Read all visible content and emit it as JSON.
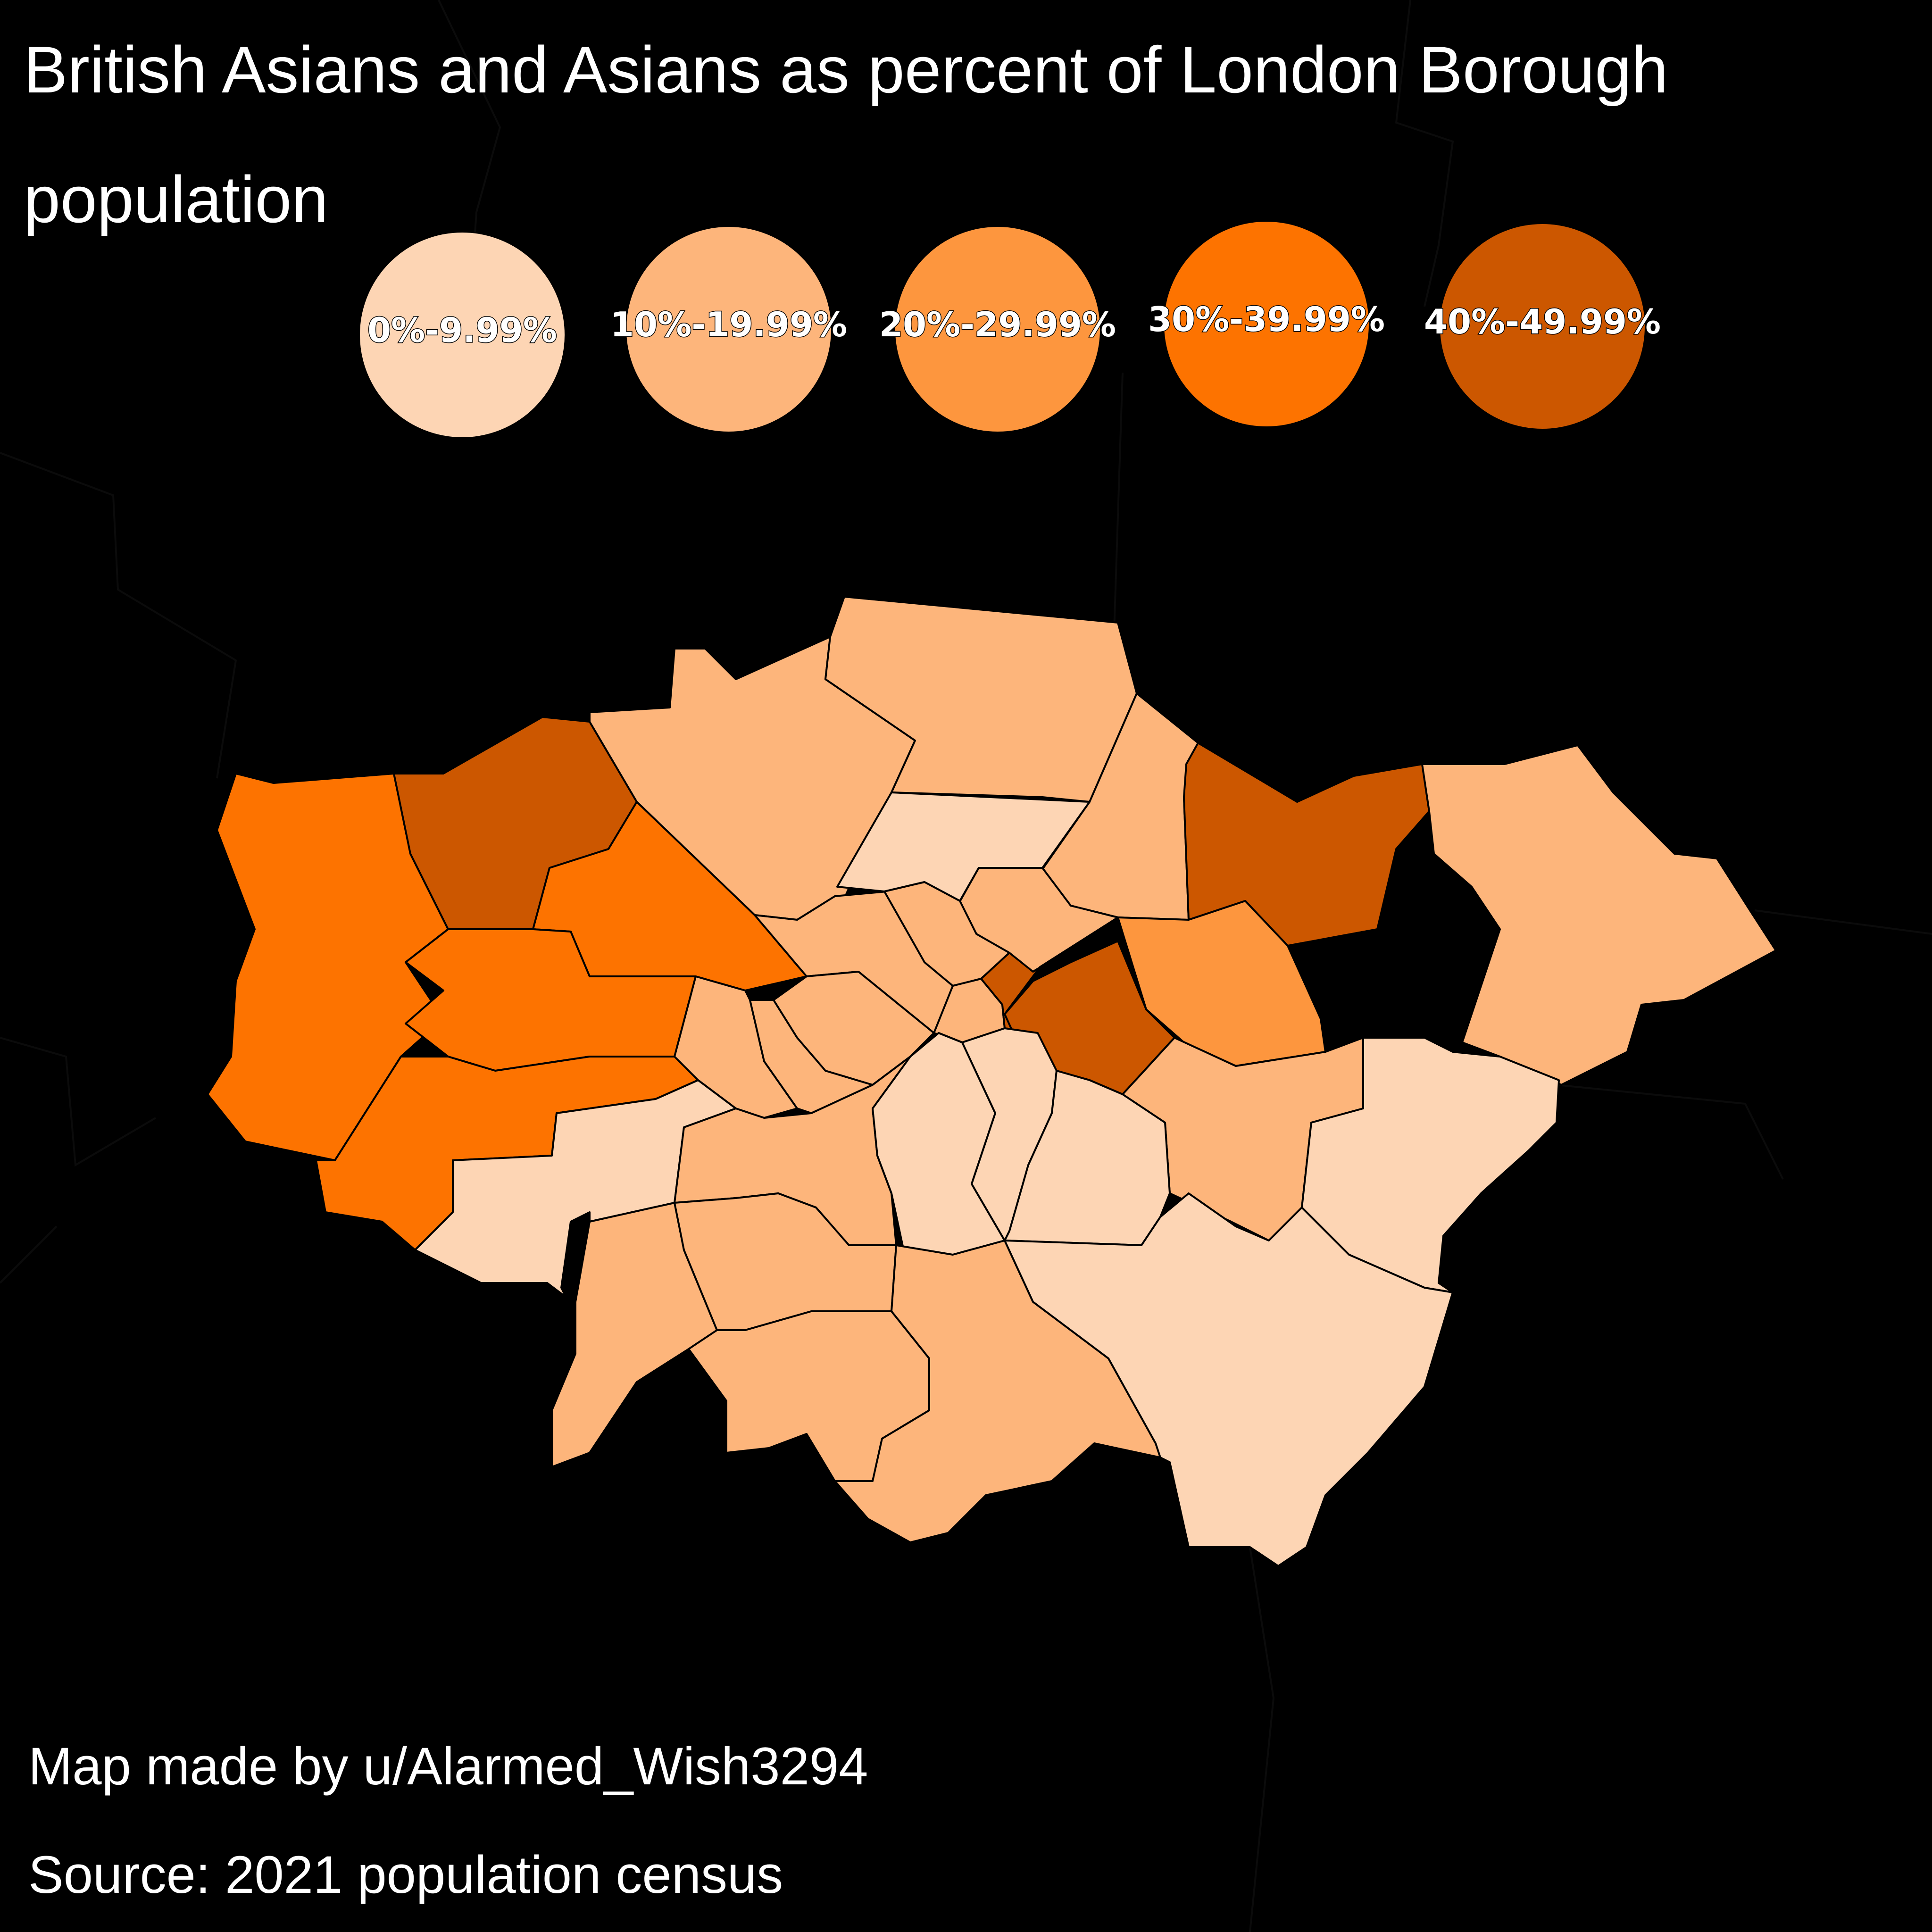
{
  "title": "British Asians and Asians as percent of London Borough population",
  "credits": {
    "author": "Map made by u/Alarmed_Wish3294",
    "source": "Source: 2021 population census"
  },
  "colors": {
    "background": "#000000",
    "border": "#000000",
    "c0": "#FDD5B4",
    "c1": "#FDB57B",
    "c2": "#FD963E",
    "c3": "#FD7300",
    "c4": "#CC5700"
  },
  "legend": [
    {
      "label": "0%-9.99%",
      "color": "#FDD5B4"
    },
    {
      "label": "10%-19.99%",
      "color": "#FDB57B"
    },
    {
      "label": "20%-29.99%",
      "color": "#FD963E"
    },
    {
      "label": "30%-39.99%",
      "color": "#FD7300"
    },
    {
      "label": "40%-49.99%",
      "color": "#CC5700"
    }
  ],
  "regions": [
    {
      "name": "hillingdon",
      "band": 3
    },
    {
      "name": "harrow",
      "band": 4
    },
    {
      "name": "barnet",
      "band": 1
    },
    {
      "name": "enfield",
      "band": 1
    },
    {
      "name": "waltham-forest",
      "band": 1
    },
    {
      "name": "redbridge",
      "band": 4
    },
    {
      "name": "havering",
      "band": 1
    },
    {
      "name": "brent",
      "band": 3
    },
    {
      "name": "haringey",
      "band": 0
    },
    {
      "name": "hackney",
      "band": 1
    },
    {
      "name": "camden",
      "band": 1
    },
    {
      "name": "islington",
      "band": 1
    },
    {
      "name": "ealing",
      "band": 3
    },
    {
      "name": "hounslow",
      "band": 3
    },
    {
      "name": "hammersmith-fulham",
      "band": 1
    },
    {
      "name": "kensington-chelsea",
      "band": 1
    },
    {
      "name": "westminster",
      "band": 1
    },
    {
      "name": "city-of-london",
      "band": 1
    },
    {
      "name": "tower-hamlets",
      "band": 4
    },
    {
      "name": "newham",
      "band": 4
    },
    {
      "name": "barking-dagenham",
      "band": 2
    },
    {
      "name": "greenwich",
      "band": 1
    },
    {
      "name": "bexley",
      "band": 0
    },
    {
      "name": "richmond",
      "band": 0
    },
    {
      "name": "wandsworth",
      "band": 1
    },
    {
      "name": "lambeth",
      "band": 0
    },
    {
      "name": "southwark",
      "band": 0
    },
    {
      "name": "lewisham",
      "band": 0
    },
    {
      "name": "kingston",
      "band": 1
    },
    {
      "name": "merton",
      "band": 1
    },
    {
      "name": "sutton",
      "band": 1
    },
    {
      "name": "croydon",
      "band": 1
    },
    {
      "name": "bromley",
      "band": 0
    }
  ]
}
